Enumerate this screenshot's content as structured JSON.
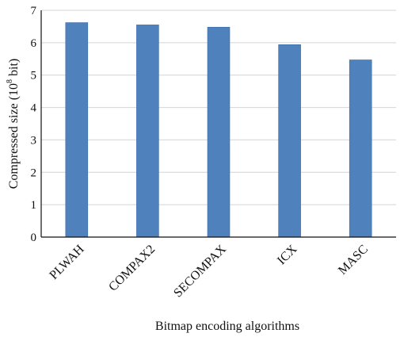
{
  "chart_data": {
    "type": "bar",
    "categories": [
      "PLWAH",
      "COMPAX2",
      "SECOMPAX",
      "ICX",
      "MASC"
    ],
    "values": [
      6.62,
      6.55,
      6.48,
      5.94,
      5.47
    ],
    "xlabel": "Bitmap encoding algorithms",
    "ylabel": {
      "prefix": "Compressed size (10",
      "superscript": "8",
      "suffix": " bit)"
    },
    "ylim": [
      0,
      7
    ],
    "yticks": [
      0,
      1,
      2,
      3,
      4,
      5,
      6,
      7
    ],
    "grid": true,
    "legend": "none",
    "colors": {
      "bar": "#4f81bd",
      "bar_stroke": "#3f6ea8",
      "grid": "#d4d4d4"
    }
  }
}
